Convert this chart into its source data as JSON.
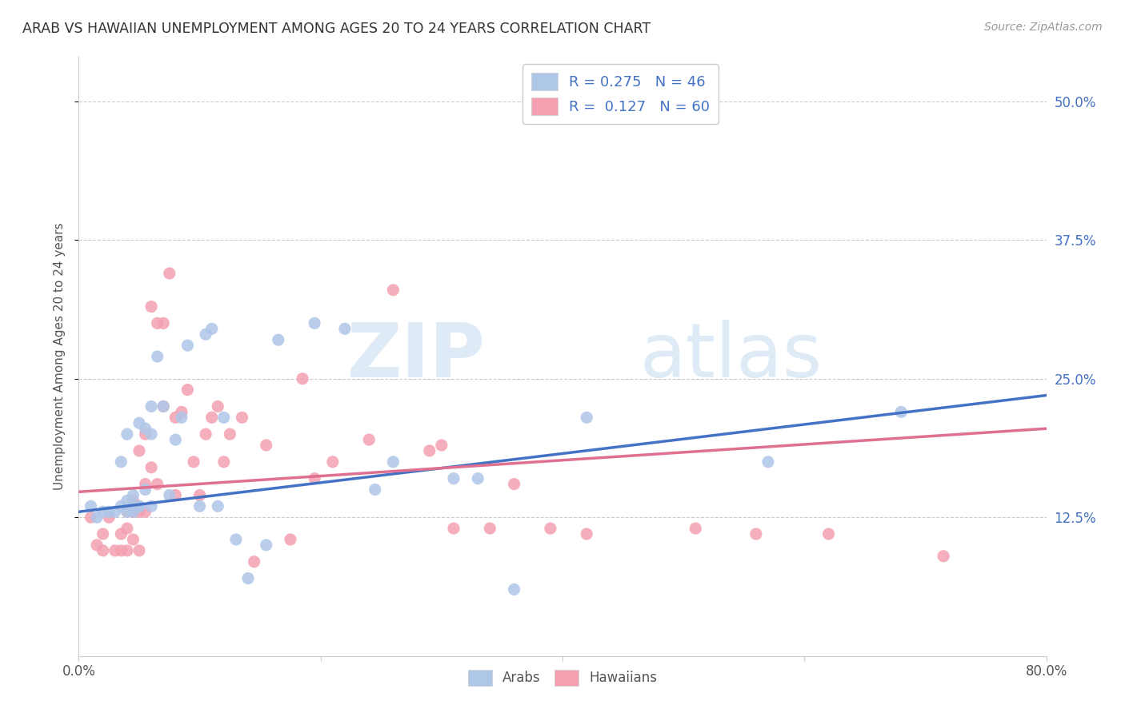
{
  "title": "ARAB VS HAWAIIAN UNEMPLOYMENT AMONG AGES 20 TO 24 YEARS CORRELATION CHART",
  "source": "Source: ZipAtlas.com",
  "ylabel": "Unemployment Among Ages 20 to 24 years",
  "xlim": [
    0.0,
    0.8
  ],
  "ylim": [
    0.0,
    0.54
  ],
  "yticks_right": [
    0.125,
    0.25,
    0.375,
    0.5
  ],
  "ytick_right_labels": [
    "12.5%",
    "25.0%",
    "37.5%",
    "50.0%"
  ],
  "grid_color": "#cccccc",
  "background_color": "#ffffff",
  "arab_color": "#aec6e8",
  "hawaiian_color": "#f4a0b0",
  "arab_line_color": "#4472c4",
  "hawaiian_line_color": "#e07090",
  "arab_R": 0.275,
  "arab_N": 46,
  "hawaiian_R": 0.127,
  "hawaiian_N": 60,
  "watermark_zip": "ZIP",
  "watermark_atlas": "atlas",
  "legend_arab_label": "Arabs",
  "legend_hawaiian_label": "Hawaiians",
  "arab_line_start_y": 0.13,
  "arab_line_end_y": 0.235,
  "hawaiian_line_start_y": 0.148,
  "hawaiian_line_end_y": 0.205,
  "arab_x": [
    0.01,
    0.015,
    0.02,
    0.025,
    0.03,
    0.035,
    0.035,
    0.04,
    0.04,
    0.04,
    0.045,
    0.045,
    0.045,
    0.05,
    0.05,
    0.05,
    0.055,
    0.055,
    0.06,
    0.06,
    0.06,
    0.065,
    0.07,
    0.075,
    0.08,
    0.085,
    0.09,
    0.1,
    0.105,
    0.11,
    0.115,
    0.12,
    0.13,
    0.14,
    0.155,
    0.165,
    0.195,
    0.22,
    0.245,
    0.26,
    0.31,
    0.33,
    0.36,
    0.42,
    0.57,
    0.68
  ],
  "arab_y": [
    0.135,
    0.125,
    0.13,
    0.13,
    0.13,
    0.135,
    0.175,
    0.13,
    0.14,
    0.2,
    0.13,
    0.135,
    0.145,
    0.135,
    0.135,
    0.21,
    0.15,
    0.205,
    0.135,
    0.2,
    0.225,
    0.27,
    0.225,
    0.145,
    0.195,
    0.215,
    0.28,
    0.135,
    0.29,
    0.295,
    0.135,
    0.215,
    0.105,
    0.07,
    0.1,
    0.285,
    0.3,
    0.295,
    0.15,
    0.175,
    0.16,
    0.16,
    0.06,
    0.215,
    0.175,
    0.22
  ],
  "hawaiian_x": [
    0.01,
    0.015,
    0.02,
    0.02,
    0.025,
    0.03,
    0.035,
    0.035,
    0.04,
    0.04,
    0.04,
    0.045,
    0.045,
    0.045,
    0.045,
    0.05,
    0.05,
    0.05,
    0.055,
    0.055,
    0.055,
    0.06,
    0.06,
    0.065,
    0.065,
    0.07,
    0.07,
    0.075,
    0.08,
    0.08,
    0.085,
    0.09,
    0.095,
    0.1,
    0.105,
    0.11,
    0.115,
    0.12,
    0.125,
    0.135,
    0.145,
    0.155,
    0.175,
    0.185,
    0.195,
    0.21,
    0.24,
    0.26,
    0.29,
    0.3,
    0.31,
    0.34,
    0.36,
    0.39,
    0.42,
    0.45,
    0.51,
    0.56,
    0.62,
    0.715
  ],
  "hawaiian_y": [
    0.125,
    0.1,
    0.11,
    0.095,
    0.125,
    0.095,
    0.11,
    0.095,
    0.13,
    0.115,
    0.095,
    0.13,
    0.13,
    0.14,
    0.105,
    0.13,
    0.095,
    0.185,
    0.13,
    0.155,
    0.2,
    0.17,
    0.315,
    0.3,
    0.155,
    0.3,
    0.225,
    0.345,
    0.145,
    0.215,
    0.22,
    0.24,
    0.175,
    0.145,
    0.2,
    0.215,
    0.225,
    0.175,
    0.2,
    0.215,
    0.085,
    0.19,
    0.105,
    0.25,
    0.16,
    0.175,
    0.195,
    0.33,
    0.185,
    0.19,
    0.115,
    0.115,
    0.155,
    0.115,
    0.11,
    0.5,
    0.115,
    0.11,
    0.11,
    0.09
  ]
}
